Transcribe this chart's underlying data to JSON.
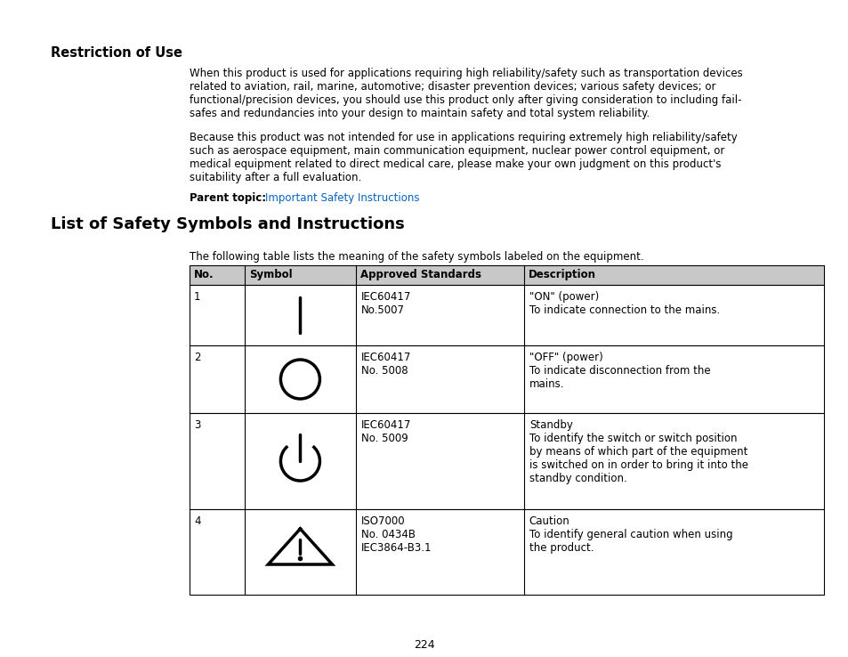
{
  "background_color": "#ffffff",
  "page_number": "224",
  "section1_title": "Restriction of Use",
  "section1_para1": "When this product is used for applications requiring high reliability/safety such as transportation devices\nrelated to aviation, rail, marine, automotive; disaster prevention devices; various safety devices; or\nfunctional/precision devices, you should use this product only after giving consideration to including fail-\nsafes and redundancies into your design to maintain safety and total system reliability.",
  "section1_para2": "Because this product was not intended for use in applications requiring extremely high reliability/safety\nsuch as aerospace equipment, main communication equipment, nuclear power control equipment, or\nmedical equipment related to direct medical care, please make your own judgment on this product's\nsuitability after a full evaluation.",
  "section1_parent_label": "Parent topic: ",
  "section1_parent_link": "Important Safety Instructions",
  "section2_title": "List of Safety Symbols and Instructions",
  "section2_intro": "The following table lists the meaning of the safety symbols labeled on the equipment.",
  "table_headers": [
    "No.",
    "Symbol",
    "Approved Standards",
    "Description"
  ],
  "table_rows": [
    {
      "no": "1",
      "symbol": "power_on",
      "standards": "IEC60417\nNo.5007",
      "description": "\"ON\" (power)\nTo indicate connection to the mains."
    },
    {
      "no": "2",
      "symbol": "power_off",
      "standards": "IEC60417\nNo. 5008",
      "description": "\"OFF\" (power)\nTo indicate disconnection from the\nmains."
    },
    {
      "no": "3",
      "symbol": "standby",
      "standards": "IEC60417\nNo. 5009",
      "description": "Standby\nTo identify the switch or switch position\nby means of which part of the equipment\nis switched on in order to bring it into the\nstandby condition."
    },
    {
      "no": "4",
      "symbol": "caution",
      "standards": "ISO7000\nNo. 0434B\nIEC3864-B3.1",
      "description": "Caution\nTo identify general caution when using\nthe product."
    }
  ],
  "link_color": "#0563C1",
  "header_bg": "#c8c8c8"
}
